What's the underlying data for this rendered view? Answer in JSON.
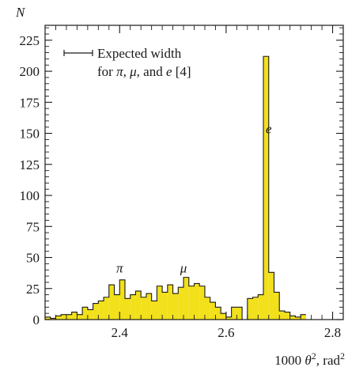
{
  "chart_data": {
    "type": "histogram",
    "title": "",
    "xlabel_parts": [
      "1000 ",
      "θ",
      "2",
      ", rad",
      "2"
    ],
    "ylabel": "N",
    "xlim": [
      2.26,
      2.82
    ],
    "ylim": [
      0,
      237
    ],
    "x_ticks": [
      2.4,
      2.6,
      2.8
    ],
    "x_tick_labels": [
      "2.4",
      "2.6",
      "2.8"
    ],
    "y_ticks": [
      0,
      25,
      50,
      75,
      100,
      125,
      150,
      175,
      200,
      225
    ],
    "y_tick_labels": [
      "0",
      "25",
      "50",
      "75",
      "100",
      "125",
      "150",
      "175",
      "200",
      "225"
    ],
    "fill_color": "#f2e01a",
    "bin_width": 0.01,
    "bin_edges_start": 2.26,
    "counts": [
      2,
      1,
      3,
      4,
      4,
      6,
      4,
      10,
      8,
      13,
      15,
      18,
      28,
      20,
      32,
      17,
      20,
      23,
      18,
      21,
      15,
      27,
      22,
      28,
      21,
      26,
      34,
      27,
      29,
      27,
      18,
      14,
      10,
      5,
      2,
      10,
      10,
      0,
      17,
      18,
      20,
      212,
      38,
      22,
      7,
      6,
      3,
      2,
      4
    ],
    "legend": {
      "line1": "Expected width",
      "line2_prefix": "for ",
      "line2_symbols": [
        "π",
        "μ",
        "e"
      ],
      "line2_suffix": " [4]"
    },
    "annotations": [
      {
        "text": "π",
        "x": 2.4,
        "y": 38
      },
      {
        "text": "μ",
        "x": 2.52,
        "y": 38
      },
      {
        "text": "e",
        "x": 2.68,
        "y": 150
      }
    ]
  }
}
